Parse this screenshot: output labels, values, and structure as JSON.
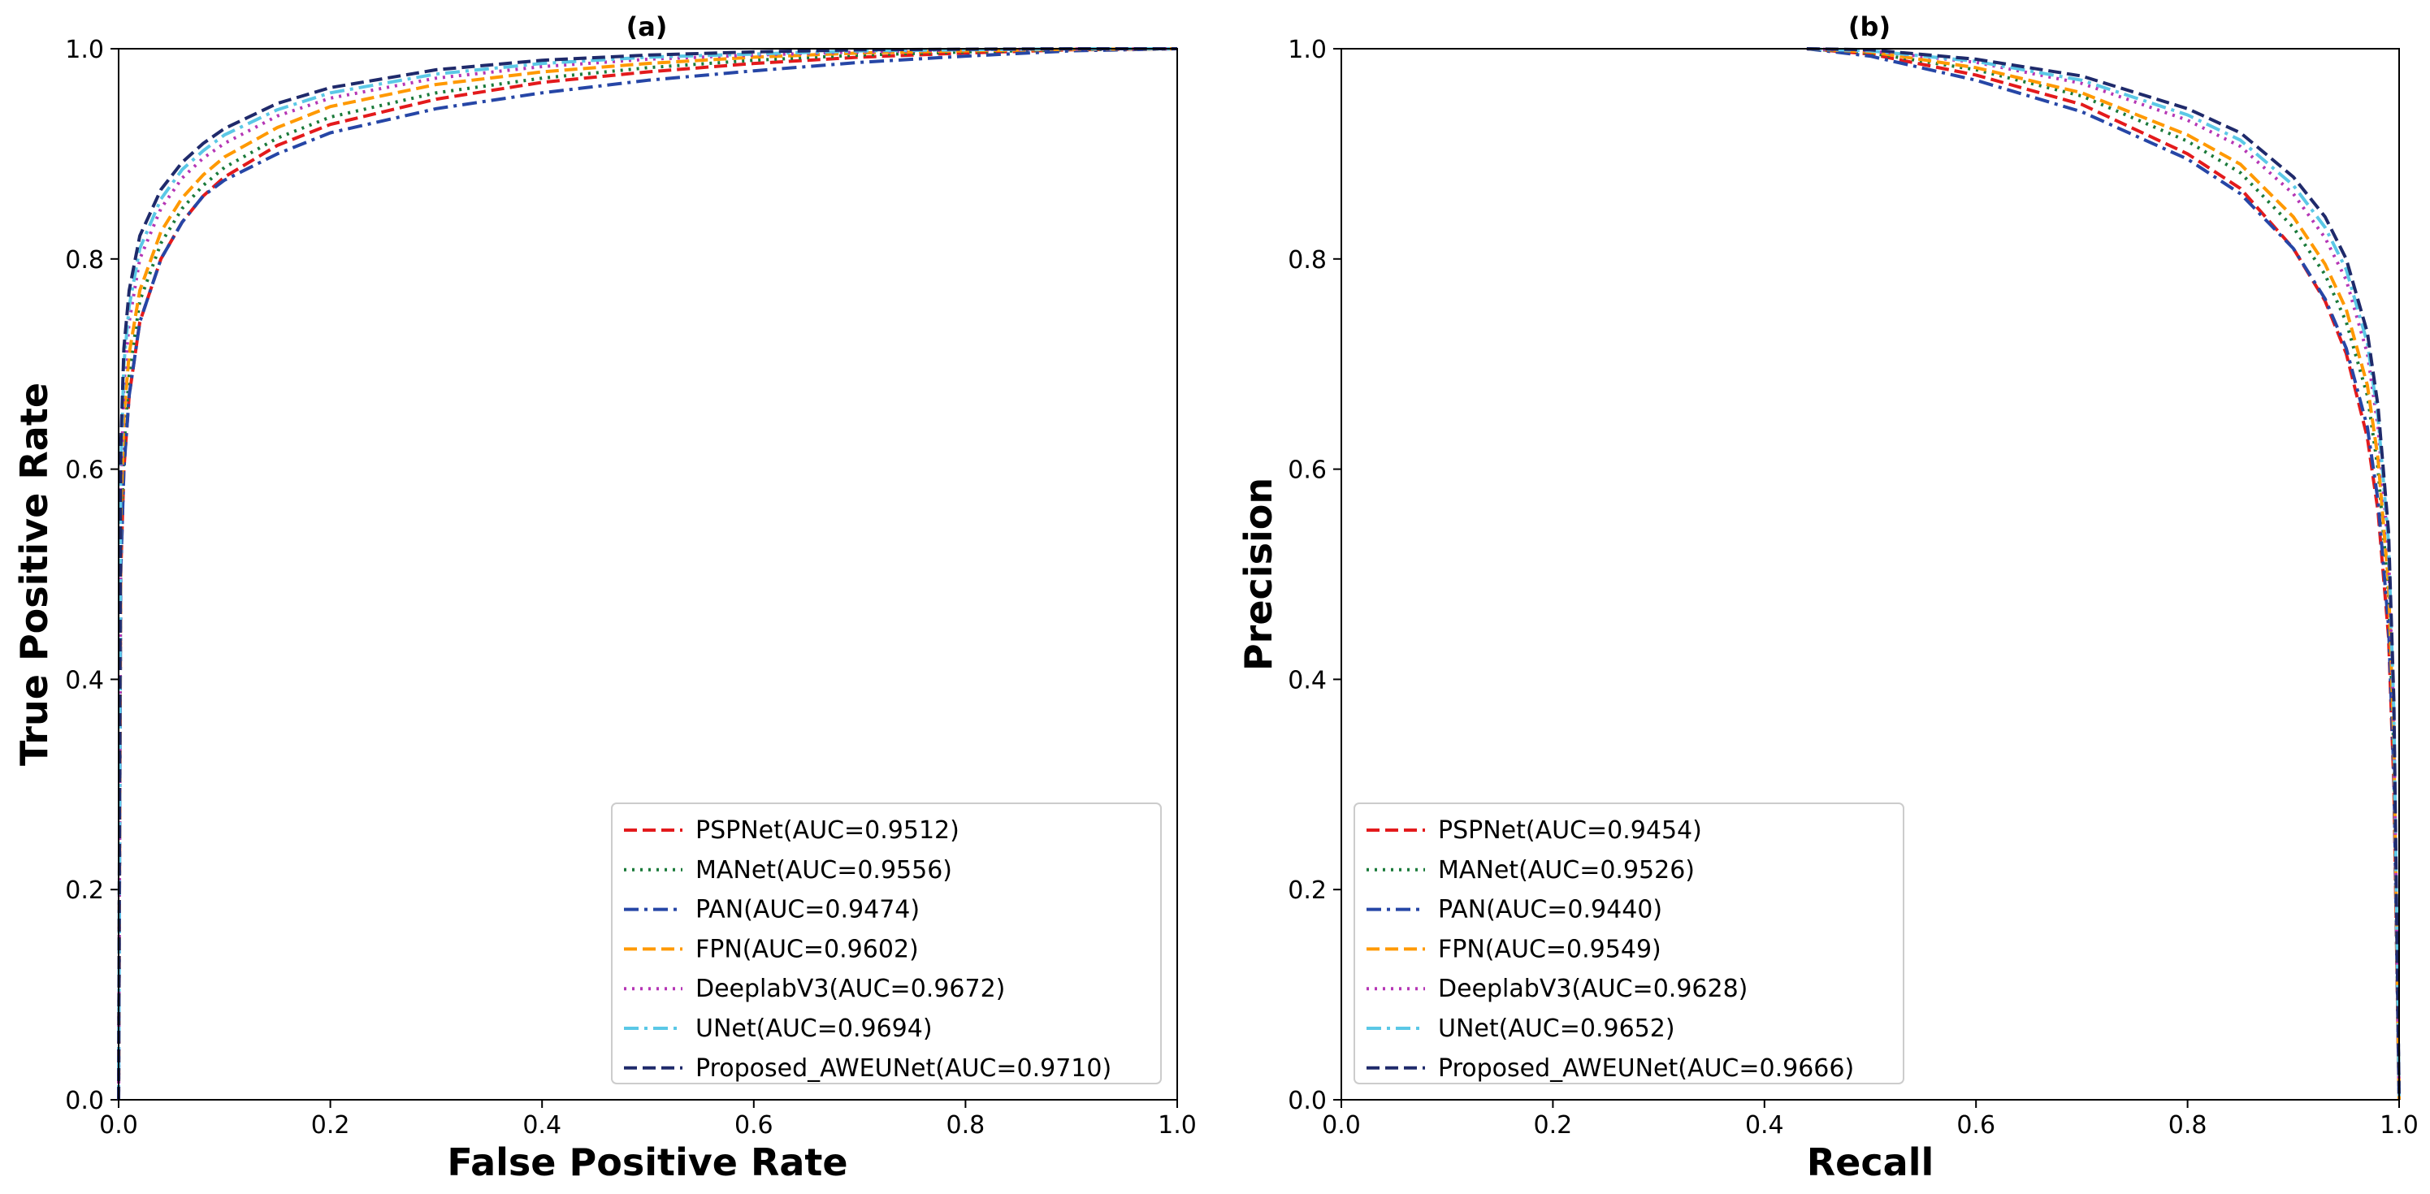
{
  "chart_data": [
    {
      "type": "line",
      "title": "(a)",
      "xlabel": "False Positive Rate",
      "ylabel": "True Positive Rate",
      "xlim": [
        0.0,
        1.0
      ],
      "ylim": [
        0.0,
        1.0
      ],
      "xticks": [
        "0.0",
        "0.2",
        "0.4",
        "0.6",
        "0.8",
        "1.0"
      ],
      "yticks": [
        "0.0",
        "0.2",
        "0.4",
        "0.6",
        "0.8",
        "1.0"
      ],
      "grid": false,
      "legend_position": "lower-right",
      "series": [
        {
          "name": "PSPNet(AUC=0.9512)",
          "color": "#e31a1c",
          "style": "dashed",
          "x": [
            0,
            0.002,
            0.005,
            0.01,
            0.02,
            0.04,
            0.06,
            0.08,
            0.1,
            0.15,
            0.2,
            0.3,
            0.4,
            0.5,
            0.6,
            0.7,
            0.8,
            0.9,
            1.0
          ],
          "y": [
            0,
            0.5,
            0.6,
            0.67,
            0.74,
            0.8,
            0.835,
            0.86,
            0.878,
            0.908,
            0.928,
            0.952,
            0.968,
            0.978,
            0.986,
            0.992,
            0.996,
            0.999,
            1.0
          ]
        },
        {
          "name": "MANet(AUC=0.9556)",
          "color": "#1a7a3a",
          "style": "dotted",
          "x": [
            0,
            0.002,
            0.005,
            0.01,
            0.02,
            0.04,
            0.06,
            0.08,
            0.1,
            0.15,
            0.2,
            0.3,
            0.4,
            0.5,
            0.6,
            0.7,
            0.8,
            0.9,
            1.0
          ],
          "y": [
            0,
            0.52,
            0.62,
            0.69,
            0.76,
            0.815,
            0.848,
            0.87,
            0.887,
            0.915,
            0.935,
            0.958,
            0.972,
            0.982,
            0.989,
            0.994,
            0.997,
            0.999,
            1.0
          ]
        },
        {
          "name": "PAN(AUC=0.9474)",
          "color": "#2646a6",
          "style": "dashdot",
          "x": [
            0,
            0.002,
            0.005,
            0.01,
            0.02,
            0.04,
            0.06,
            0.08,
            0.1,
            0.15,
            0.2,
            0.3,
            0.4,
            0.5,
            0.6,
            0.7,
            0.8,
            0.9,
            1.0
          ],
          "y": [
            0,
            0.5,
            0.6,
            0.67,
            0.74,
            0.8,
            0.835,
            0.86,
            0.875,
            0.9,
            0.92,
            0.943,
            0.958,
            0.97,
            0.979,
            0.987,
            0.993,
            0.998,
            1.0
          ]
        },
        {
          "name": "FPN(AUC=0.9602)",
          "color": "#ff9900",
          "style": "dashed",
          "x": [
            0,
            0.002,
            0.005,
            0.01,
            0.02,
            0.04,
            0.06,
            0.08,
            0.1,
            0.15,
            0.2,
            0.3,
            0.4,
            0.5,
            0.6,
            0.7,
            0.8,
            0.9,
            1.0
          ],
          "y": [
            0,
            0.55,
            0.65,
            0.71,
            0.77,
            0.826,
            0.858,
            0.88,
            0.897,
            0.925,
            0.945,
            0.966,
            0.978,
            0.986,
            0.992,
            0.996,
            0.998,
            0.9995,
            1.0
          ]
        },
        {
          "name": "DeeplabV3(AUC=0.9672)",
          "color": "#b536b5",
          "style": "dotted",
          "x": [
            0,
            0.002,
            0.005,
            0.01,
            0.02,
            0.04,
            0.06,
            0.08,
            0.1,
            0.15,
            0.2,
            0.3,
            0.4,
            0.5,
            0.6,
            0.7,
            0.8,
            0.9,
            1.0
          ],
          "y": [
            0,
            0.58,
            0.68,
            0.74,
            0.8,
            0.848,
            0.877,
            0.896,
            0.91,
            0.936,
            0.953,
            0.972,
            0.983,
            0.99,
            0.994,
            0.997,
            0.999,
            0.9998,
            1.0
          ]
        },
        {
          "name": "UNet(AUC=0.9694)",
          "color": "#5bc8e6",
          "style": "dashdot",
          "x": [
            0,
            0.002,
            0.005,
            0.01,
            0.02,
            0.04,
            0.06,
            0.08,
            0.1,
            0.15,
            0.2,
            0.3,
            0.4,
            0.5,
            0.6,
            0.7,
            0.8,
            0.9,
            1.0
          ],
          "y": [
            0,
            0.6,
            0.7,
            0.755,
            0.81,
            0.857,
            0.885,
            0.903,
            0.918,
            0.942,
            0.958,
            0.976,
            0.986,
            0.992,
            0.995,
            0.998,
            0.999,
            1.0,
            1.0
          ]
        },
        {
          "name": "Proposed_AWEUNet(AUC=0.9710)",
          "color": "#1f2a6b",
          "style": "dashed",
          "x": [
            0,
            0.002,
            0.005,
            0.01,
            0.02,
            0.04,
            0.06,
            0.08,
            0.1,
            0.15,
            0.2,
            0.3,
            0.4,
            0.5,
            0.6,
            0.7,
            0.8,
            0.9,
            1.0
          ],
          "y": [
            0,
            0.62,
            0.715,
            0.77,
            0.822,
            0.866,
            0.892,
            0.91,
            0.924,
            0.948,
            0.963,
            0.98,
            0.989,
            0.994,
            0.997,
            0.999,
            0.9995,
            1.0,
            1.0
          ]
        }
      ]
    },
    {
      "type": "line",
      "title": "(b)",
      "xlabel": "Recall",
      "ylabel": "Precision",
      "xlim": [
        0.0,
        1.0
      ],
      "ylim": [
        0.0,
        1.0
      ],
      "xticks": [
        "0.0",
        "0.2",
        "0.4",
        "0.6",
        "0.8",
        "1.0"
      ],
      "yticks": [
        "0.0",
        "0.2",
        "0.4",
        "0.6",
        "0.8",
        "1.0"
      ],
      "grid": false,
      "legend_position": "lower-left",
      "series": [
        {
          "name": "PSPNet(AUC=0.9454)",
          "color": "#e31a1c",
          "style": "dashed",
          "x": [
            0.44,
            0.5,
            0.6,
            0.7,
            0.8,
            0.85,
            0.9,
            0.93,
            0.95,
            0.97,
            0.98,
            0.99,
            0.995,
            1.0
          ],
          "y": [
            1.0,
            0.995,
            0.975,
            0.947,
            0.9,
            0.867,
            0.81,
            0.76,
            0.71,
            0.63,
            0.56,
            0.44,
            0.3,
            0.0
          ]
        },
        {
          "name": "MANet(AUC=0.9526)",
          "color": "#1a7a3a",
          "style": "dotted",
          "x": [
            0.44,
            0.5,
            0.6,
            0.7,
            0.8,
            0.85,
            0.9,
            0.93,
            0.95,
            0.97,
            0.98,
            0.99,
            0.995,
            1.0
          ],
          "y": [
            1.0,
            0.996,
            0.98,
            0.955,
            0.912,
            0.882,
            0.83,
            0.785,
            0.74,
            0.67,
            0.6,
            0.48,
            0.33,
            0.0
          ]
        },
        {
          "name": "PAN(AUC=0.9440)",
          "color": "#2646a6",
          "style": "dashdot",
          "x": [
            0.44,
            0.5,
            0.6,
            0.7,
            0.8,
            0.85,
            0.9,
            0.93,
            0.95,
            0.97,
            0.98,
            0.99,
            0.995,
            1.0
          ],
          "y": [
            1.0,
            0.993,
            0.97,
            0.94,
            0.895,
            0.862,
            0.81,
            0.762,
            0.715,
            0.64,
            0.57,
            0.45,
            0.31,
            0.0
          ]
        },
        {
          "name": "FPN(AUC=0.9549)",
          "color": "#ff9900",
          "style": "dashed",
          "x": [
            0.44,
            0.5,
            0.6,
            0.7,
            0.8,
            0.85,
            0.9,
            0.93,
            0.95,
            0.97,
            0.98,
            0.99,
            0.995,
            1.0
          ],
          "y": [
            1.0,
            0.997,
            0.982,
            0.958,
            0.918,
            0.89,
            0.84,
            0.795,
            0.752,
            0.68,
            0.61,
            0.49,
            0.34,
            0.0
          ]
        },
        {
          "name": "DeeplabV3(AUC=0.9628)",
          "color": "#b536b5",
          "style": "dotted",
          "x": [
            0.44,
            0.5,
            0.6,
            0.7,
            0.8,
            0.85,
            0.9,
            0.93,
            0.95,
            0.97,
            0.98,
            0.99,
            0.995,
            1.0
          ],
          "y": [
            1.0,
            0.998,
            0.987,
            0.967,
            0.932,
            0.907,
            0.862,
            0.82,
            0.78,
            0.71,
            0.64,
            0.52,
            0.36,
            0.0
          ]
        },
        {
          "name": "UNet(AUC=0.9652)",
          "color": "#5bc8e6",
          "style": "dashdot",
          "x": [
            0.44,
            0.5,
            0.6,
            0.7,
            0.8,
            0.85,
            0.9,
            0.93,
            0.95,
            0.97,
            0.98,
            0.99,
            0.995,
            1.0
          ],
          "y": [
            1.0,
            0.998,
            0.988,
            0.97,
            0.937,
            0.913,
            0.87,
            0.83,
            0.79,
            0.72,
            0.65,
            0.53,
            0.37,
            0.0
          ]
        },
        {
          "name": "Proposed_AWEUNet(AUC=0.9666)",
          "color": "#1f2a6b",
          "style": "dashed",
          "x": [
            0.44,
            0.5,
            0.6,
            0.7,
            0.8,
            0.85,
            0.9,
            0.93,
            0.95,
            0.97,
            0.98,
            0.99,
            0.995,
            1.0
          ],
          "y": [
            1.0,
            0.999,
            0.99,
            0.974,
            0.943,
            0.92,
            0.878,
            0.84,
            0.8,
            0.73,
            0.66,
            0.54,
            0.38,
            0.0
          ]
        }
      ]
    }
  ]
}
